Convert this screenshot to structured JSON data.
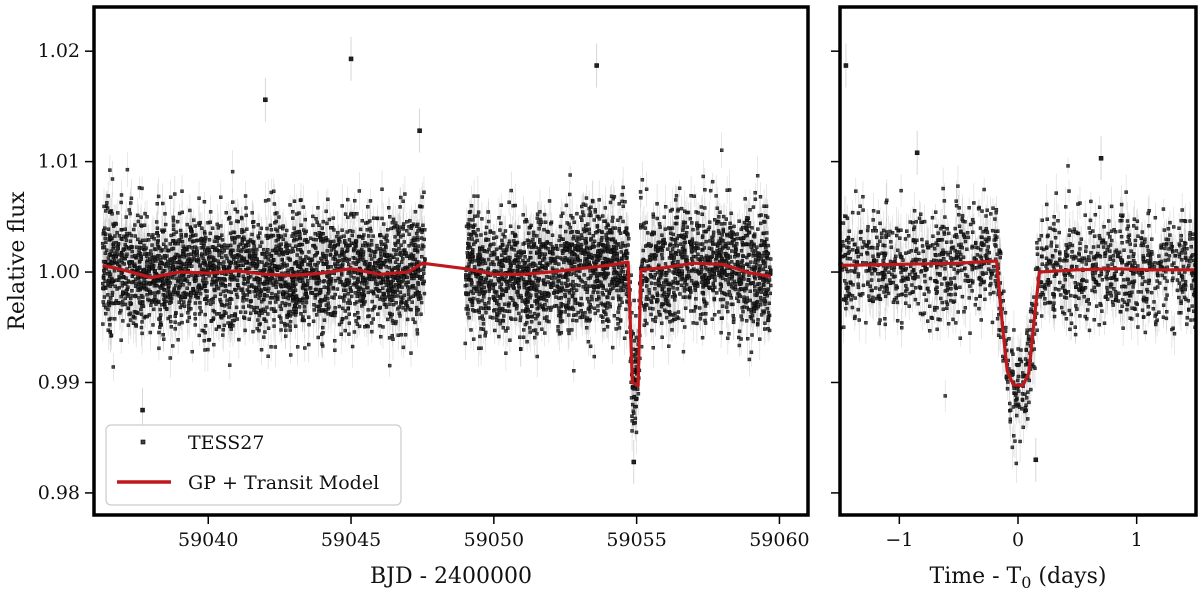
{
  "chart_data": [
    {
      "type": "scatter",
      "xlabel": "BJD - 2400000",
      "ylabel": "Relative flux",
      "xlim": [
        59036,
        59061
      ],
      "ylim": [
        0.978,
        1.024
      ],
      "xticks": [
        {
          "value": 59040,
          "label": "59040"
        },
        {
          "value": 59045,
          "label": "59045"
        },
        {
          "value": 59050,
          "label": "59050"
        },
        {
          "value": 59055,
          "label": "59055"
        },
        {
          "value": 59060,
          "label": "59060"
        }
      ],
      "yticks": [
        {
          "value": 0.98,
          "label": "0.98"
        },
        {
          "value": 0.99,
          "label": "0.99"
        },
        {
          "value": 1.0,
          "label": "1.00"
        },
        {
          "value": 1.01,
          "label": "1.01"
        },
        {
          "value": 1.02,
          "label": "1.02"
        }
      ],
      "grid": false,
      "legend": {
        "position": "bottom-left",
        "entries": [
          "TESS27",
          "GP + Transit Model"
        ]
      },
      "series": [
        {
          "name": "TESS27",
          "kind": "points",
          "color": "#222222",
          "segments": [
            [
              59036.3,
              59047.6
            ],
            [
              59049.0,
              59059.7
            ]
          ],
          "scatter_sigma": 0.0027,
          "outliers": [
            {
              "x": 59045.0,
              "y": 1.0193
            },
            {
              "x": 59053.6,
              "y": 1.0187
            },
            {
              "x": 59042.0,
              "y": 1.0156
            },
            {
              "x": 59047.4,
              "y": 1.0128
            },
            {
              "x": 59037.7,
              "y": 0.9875
            },
            {
              "x": 59054.9,
              "y": 0.9828
            }
          ]
        },
        {
          "name": "GP + Transit Model",
          "kind": "line",
          "color": "#c0181b",
          "points": [
            {
              "x": 59036.3,
              "y": 1.0006
            },
            {
              "x": 59037.0,
              "y": 1.0002
            },
            {
              "x": 59038.0,
              "y": 0.9995
            },
            {
              "x": 59039.0,
              "y": 1.0
            },
            {
              "x": 59040.0,
              "y": 0.9999
            },
            {
              "x": 59041.0,
              "y": 1.0001
            },
            {
              "x": 59042.0,
              "y": 0.9998
            },
            {
              "x": 59043.0,
              "y": 0.9997
            },
            {
              "x": 59044.0,
              "y": 0.9999
            },
            {
              "x": 59045.0,
              "y": 1.0003
            },
            {
              "x": 59046.0,
              "y": 0.9998
            },
            {
              "x": 59047.0,
              "y": 1.0
            },
            {
              "x": 59047.5,
              "y": 1.0008
            },
            {
              "x": 59049.0,
              "y": 1.0003
            },
            {
              "x": 59050.0,
              "y": 0.9998
            },
            {
              "x": 59051.0,
              "y": 0.9998
            },
            {
              "x": 59052.0,
              "y": 1.0
            },
            {
              "x": 59053.0,
              "y": 1.0003
            },
            {
              "x": 59054.0,
              "y": 1.0006
            },
            {
              "x": 59054.7,
              "y": 1.0009
            },
            {
              "x": 59054.85,
              "y": 0.99
            },
            {
              "x": 59055.05,
              "y": 0.9897
            },
            {
              "x": 59055.15,
              "y": 1.0002
            },
            {
              "x": 59056.0,
              "y": 1.0004
            },
            {
              "x": 59057.0,
              "y": 1.0008
            },
            {
              "x": 59058.0,
              "y": 1.0007
            },
            {
              "x": 59059.0,
              "y": 0.9999
            },
            {
              "x": 59059.7,
              "y": 0.9996
            }
          ]
        }
      ]
    },
    {
      "type": "scatter",
      "xlabel": "Time - T",
      "xlabel_subscript": "0",
      "xlabel_suffix": " (days)",
      "ylabel": "",
      "xlim": [
        -1.5,
        1.5
      ],
      "ylim": [
        0.978,
        1.024
      ],
      "xticks": [
        {
          "value": -1,
          "label": "−1"
        },
        {
          "value": 0,
          "label": "0"
        },
        {
          "value": 1,
          "label": "1"
        }
      ],
      "yticks": [
        {
          "value": 0.98
        },
        {
          "value": 0.99
        },
        {
          "value": 1.0
        },
        {
          "value": 1.01
        },
        {
          "value": 1.02
        }
      ],
      "grid": false,
      "series": [
        {
          "name": "TESS27",
          "kind": "points",
          "color": "#222222",
          "segments": [
            [
              -1.5,
              1.5
            ]
          ],
          "scatter_sigma": 0.0025,
          "outliers": [
            {
              "x": -1.45,
              "y": 1.0187
            },
            {
              "x": -0.85,
              "y": 1.0108
            },
            {
              "x": 0.7,
              "y": 1.0103
            },
            {
              "x": 0.15,
              "y": 0.983
            }
          ]
        },
        {
          "name": "GP + Transit Model",
          "kind": "line",
          "color": "#c0181b",
          "points": [
            {
              "x": -1.5,
              "y": 1.0006
            },
            {
              "x": -1.0,
              "y": 1.0007
            },
            {
              "x": -0.5,
              "y": 1.0008
            },
            {
              "x": -0.18,
              "y": 1.001
            },
            {
              "x": -0.13,
              "y": 0.995
            },
            {
              "x": -0.09,
              "y": 0.991
            },
            {
              "x": -0.04,
              "y": 0.9898
            },
            {
              "x": 0.04,
              "y": 0.9897
            },
            {
              "x": 0.09,
              "y": 0.9908
            },
            {
              "x": 0.13,
              "y": 0.995
            },
            {
              "x": 0.18,
              "y": 1.0
            },
            {
              "x": 0.5,
              "y": 1.0002
            },
            {
              "x": 0.8,
              "y": 1.0003
            },
            {
              "x": 1.1,
              "y": 1.0002
            },
            {
              "x": 1.5,
              "y": 1.0002
            }
          ]
        }
      ]
    }
  ]
}
